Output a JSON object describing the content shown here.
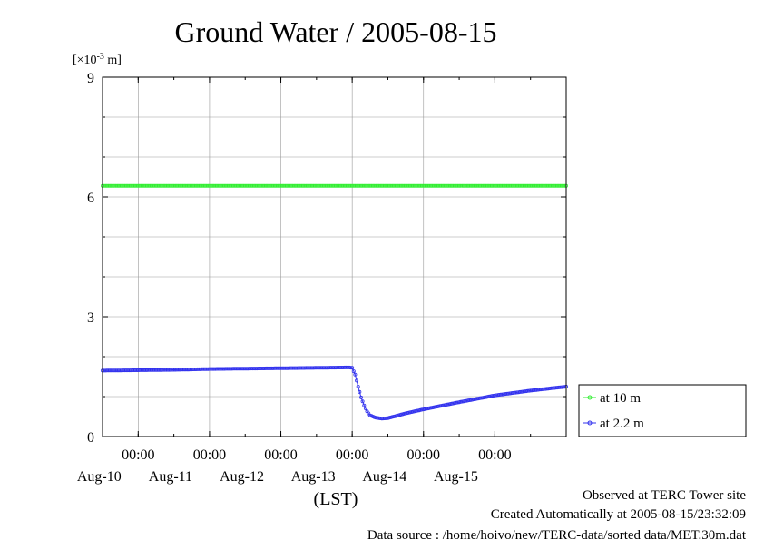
{
  "chart_data": {
    "type": "line",
    "title": "Ground Water / 2005-08-15",
    "ylabel": {
      "base": "[×10",
      "exp": "-3",
      "unit": " m]"
    },
    "xlabel": "(LST)",
    "ylim": [
      0,
      9
    ],
    "yticks": [
      "0",
      "3",
      "6",
      "9"
    ],
    "x_range": [
      "2005-08-09T12:00",
      "2005-08-15T24:00"
    ],
    "xticks": [
      {
        "time": "00:00",
        "date": "Aug-10"
      },
      {
        "time": "00:00",
        "date": "Aug-11"
      },
      {
        "time": "00:00",
        "date": "Aug-12"
      },
      {
        "time": "00:00",
        "date": "Aug-13"
      },
      {
        "time": "00:00",
        "date": "Aug-14"
      },
      {
        "time": "00:00",
        "date": "Aug-15"
      }
    ],
    "grid": true,
    "legend_position": "right-bottom",
    "series": [
      {
        "name": "at 10 m",
        "color": "#33ee33",
        "points": [
          [
            "2005-08-09T12:00",
            6.28
          ],
          [
            "2005-08-10T12:00",
            6.28
          ],
          [
            "2005-08-11T12:00",
            6.28
          ],
          [
            "2005-08-12T12:00",
            6.28
          ],
          [
            "2005-08-13T12:00",
            6.28
          ],
          [
            "2005-08-14T12:00",
            6.28
          ],
          [
            "2005-08-15T24:00",
            6.28
          ]
        ]
      },
      {
        "name": "at 2.2 m",
        "color": "#3333ee",
        "points": [
          [
            "2005-08-09T12:00",
            1.65
          ],
          [
            "2005-08-10T00:00",
            1.66
          ],
          [
            "2005-08-10T12:00",
            1.67
          ],
          [
            "2005-08-11T00:00",
            1.69
          ],
          [
            "2005-08-11T12:00",
            1.7
          ],
          [
            "2005-08-12T00:00",
            1.71
          ],
          [
            "2005-08-12T12:00",
            1.72
          ],
          [
            "2005-08-12T23:00",
            1.73
          ],
          [
            "2005-08-13T00:00",
            1.72
          ],
          [
            "2005-08-13T01:00",
            1.55
          ],
          [
            "2005-08-13T02:00",
            1.25
          ],
          [
            "2005-08-13T03:00",
            0.98
          ],
          [
            "2005-08-13T04:00",
            0.78
          ],
          [
            "2005-08-13T05:00",
            0.63
          ],
          [
            "2005-08-13T06:00",
            0.53
          ],
          [
            "2005-08-13T08:00",
            0.47
          ],
          [
            "2005-08-13T10:00",
            0.45
          ],
          [
            "2005-08-13T12:00",
            0.46
          ],
          [
            "2005-08-13T15:00",
            0.52
          ],
          [
            "2005-08-13T18:00",
            0.58
          ],
          [
            "2005-08-14T00:00",
            0.68
          ],
          [
            "2005-08-14T06:00",
            0.77
          ],
          [
            "2005-08-14T12:00",
            0.86
          ],
          [
            "2005-08-15T00:00",
            1.03
          ],
          [
            "2005-08-15T06:00",
            1.09
          ],
          [
            "2005-08-15T12:00",
            1.15
          ],
          [
            "2005-08-15T18:00",
            1.2
          ],
          [
            "2005-08-15T24:00",
            1.25
          ]
        ]
      }
    ]
  },
  "footer": {
    "site": "Observed at TERC Tower site",
    "created": "Created Automatically at 2005-08-15/23:32:09",
    "source": "Data source : /home/hoivo/new/TERC-data/sorted  data/MET.30m.dat"
  }
}
